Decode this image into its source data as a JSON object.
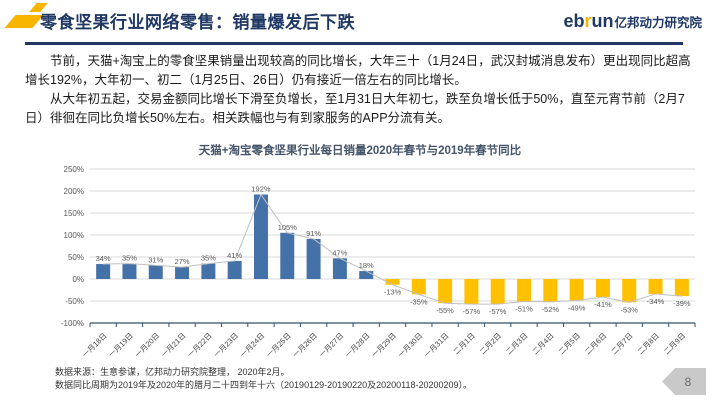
{
  "header": {
    "title": "零食坚果行业网络零售：销量爆发后下跌",
    "logo": {
      "eb": "eb",
      "r": "r",
      "un": "un",
      "suffix": "亿邦动力研究院"
    }
  },
  "body": {
    "paragraph1": "节前，天猫+淘宝上的零食坚果销量出现较高的同比增长，大年三十（1月24日，武汉封城消息发布）更出现同比超高增长192%，大年初一、初二（1月25日、26日）仍有接近一倍左右的同比增长。",
    "paragraph2": "从大年初五起，交易金额同比增长下滑至负增长，至1月31日大年初七，跌至负增长低于50%，直至元宵节前（2月7日）徘徊在同比负增长50%左右。相关跌幅也与有到家服务的APP分流有关。"
  },
  "chart_data": {
    "type": "bar",
    "title": "天猫+淘宝零食坚果行业每日销量2020年春节与2019年春节同比",
    "categories": [
      "一月18日",
      "一月19日",
      "一月20日",
      "一月21日",
      "一月22日",
      "一月23日",
      "一月24日",
      "一月25日",
      "一月26日",
      "一月27日",
      "一月28日",
      "一月29日",
      "一月30日",
      "一月31日",
      "二月1日",
      "二月2日",
      "二月3日",
      "二月4日",
      "二月5日",
      "二月6日",
      "二月7日",
      "二月8日",
      "二月9日"
    ],
    "values": [
      34,
      35,
      31,
      27,
      35,
      41,
      192,
      105,
      91,
      47,
      18,
      -13,
      -35,
      -55,
      -57,
      -57,
      -51,
      -52,
      -49,
      -41,
      -53,
      -34,
      -39
    ],
    "unit": "%",
    "ylim": [
      -100,
      250
    ],
    "y_ticks": [
      "250%",
      "200%",
      "150%",
      "100%",
      "50%",
      "0%",
      "-50%",
      "-100%"
    ],
    "grid": true,
    "legend": "none",
    "line_overlay": true,
    "colors": {
      "positive_bar": "#4472A8",
      "negative_bar": "#FFC000",
      "line": "#BFBFBF",
      "gridline": "#D9D9D9",
      "axis": "#31526E",
      "data_label": "#595959",
      "tick_label": "#595959"
    }
  },
  "footer": {
    "source_line1": "数据来源：生意参谋，亿邦动力研究院整理， 2020年2月。",
    "source_line2": "数据同比周期为2019年及2020年的腊月二十四到年十六（20190129-20190220及20200118-20200209）。",
    "page_number": "8"
  }
}
